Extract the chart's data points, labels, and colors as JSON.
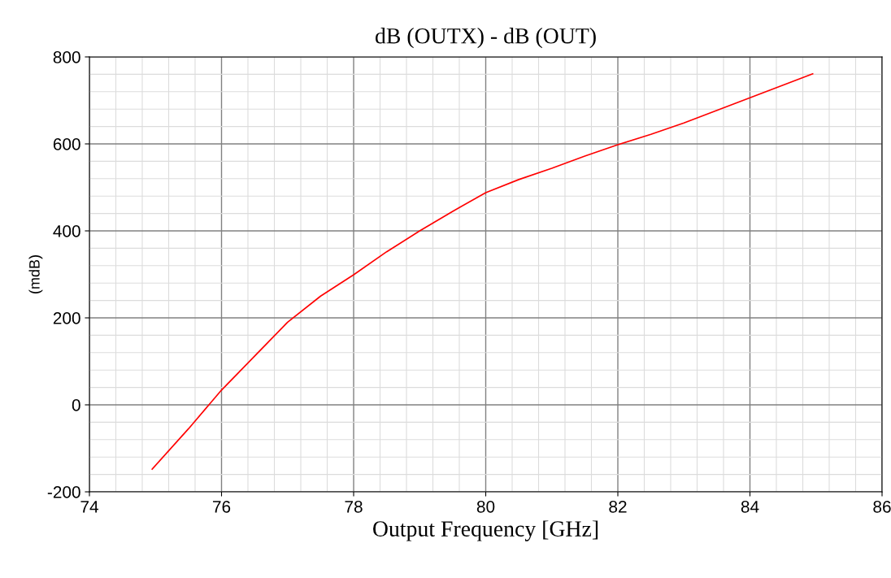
{
  "chart_data": {
    "type": "line",
    "title": "dB (OUTX) - dB (OUT)",
    "xlabel": "Output Frequency [GHz]",
    "ylabel": "(mdB)",
    "x": [
      74.95,
      75.5,
      76.0,
      76.5,
      77.0,
      77.5,
      78.0,
      78.5,
      79.0,
      79.5,
      80.0,
      80.5,
      81.0,
      81.5,
      82.0,
      82.5,
      83.0,
      83.5,
      84.0,
      84.5,
      84.95
    ],
    "series": [
      {
        "color": "#ff0000",
        "values": [
          -148,
          -55,
          34,
          112,
          190,
          250,
          299,
          352,
          400,
          445,
          488,
          518,
          544,
          572,
          598,
          622,
          648,
          677,
          706,
          735,
          761
        ]
      }
    ],
    "xlim": [
      74,
      86
    ],
    "xticks": [
      74,
      76,
      78,
      80,
      82,
      84,
      86
    ],
    "ylim": [
      -200,
      800
    ],
    "yticks": [
      -200,
      0,
      200,
      400,
      600,
      800
    ],
    "grid": true,
    "marker": "none",
    "line_style": "solid"
  }
}
